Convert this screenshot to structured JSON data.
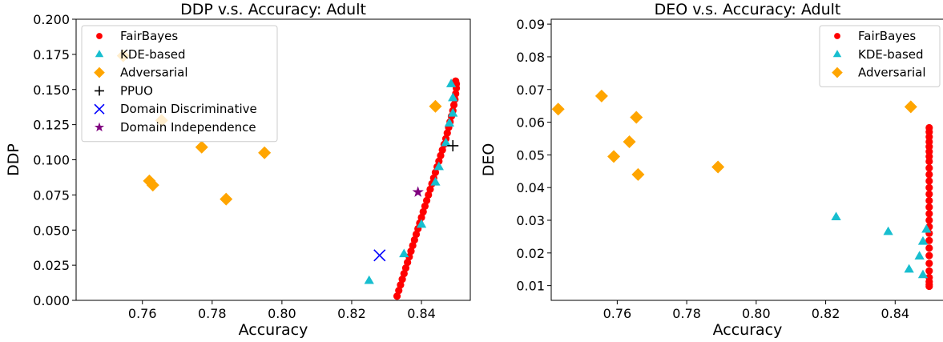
{
  "colors": {
    "fairbayes": "#ff0000",
    "kde": "#17becf",
    "adversarial": "#ffa500",
    "ppuo": "#000000",
    "domain_discriminative": "#0000ff",
    "domain_independence": "#800080"
  },
  "chart_data": [
    {
      "type": "scatter",
      "title": "DDP v.s. Accuracy: Adult",
      "xlabel": "Accuracy",
      "ylabel": "DDP",
      "xlim": [
        0.741,
        0.854
      ],
      "ylim": [
        0.0,
        0.2
      ],
      "xticks": [
        "0.76",
        "0.78",
        "0.80",
        "0.82",
        "0.84"
      ],
      "yticks": [
        "0.000",
        "0.025",
        "0.050",
        "0.075",
        "0.100",
        "0.125",
        "0.150",
        "0.175",
        "0.200"
      ],
      "grid": false,
      "legend_position": "top-left",
      "series": [
        {
          "name": "FairBayes",
          "marker": "circle",
          "color": "#ff0000",
          "points": [
            [
              0.833,
              0.003
            ],
            [
              0.8335,
              0.007
            ],
            [
              0.834,
              0.011
            ],
            [
              0.8345,
              0.015
            ],
            [
              0.835,
              0.019
            ],
            [
              0.8355,
              0.023
            ],
            [
              0.836,
              0.027
            ],
            [
              0.8365,
              0.031
            ],
            [
              0.837,
              0.035
            ],
            [
              0.8375,
              0.039
            ],
            [
              0.838,
              0.043
            ],
            [
              0.8385,
              0.047
            ],
            [
              0.839,
              0.051
            ],
            [
              0.8395,
              0.055
            ],
            [
              0.84,
              0.059
            ],
            [
              0.8405,
              0.063
            ],
            [
              0.841,
              0.067
            ],
            [
              0.8415,
              0.071
            ],
            [
              0.842,
              0.075
            ],
            [
              0.8425,
              0.079
            ],
            [
              0.843,
              0.083
            ],
            [
              0.8435,
              0.087
            ],
            [
              0.844,
              0.091
            ],
            [
              0.8445,
              0.095
            ],
            [
              0.845,
              0.099
            ],
            [
              0.8455,
              0.103
            ],
            [
              0.846,
              0.107
            ],
            [
              0.8465,
              0.111
            ],
            [
              0.847,
              0.115
            ],
            [
              0.8474,
              0.119
            ],
            [
              0.8478,
              0.123
            ],
            [
              0.8482,
              0.127
            ],
            [
              0.8486,
              0.131
            ],
            [
              0.849,
              0.135
            ],
            [
              0.8493,
              0.139
            ],
            [
              0.8496,
              0.143
            ],
            [
              0.8498,
              0.147
            ],
            [
              0.85,
              0.151
            ],
            [
              0.85,
              0.154
            ],
            [
              0.8498,
              0.156
            ]
          ]
        },
        {
          "name": "KDE-based",
          "marker": "triangle",
          "color": "#17becf",
          "points": [
            [
              0.825,
              0.014
            ],
            [
              0.835,
              0.033
            ],
            [
              0.84,
              0.054
            ],
            [
              0.844,
              0.084
            ],
            [
              0.845,
              0.095
            ],
            [
              0.847,
              0.112
            ],
            [
              0.848,
              0.126
            ],
            [
              0.849,
              0.133
            ],
            [
              0.849,
              0.144
            ],
            [
              0.8485,
              0.154
            ]
          ]
        },
        {
          "name": "Adversarial",
          "marker": "diamond",
          "color": "#ffa500",
          "points": [
            [
              0.7545,
              0.174
            ],
            [
              0.7655,
              0.128
            ],
            [
              0.777,
              0.109
            ],
            [
              0.795,
              0.105
            ],
            [
              0.762,
              0.085
            ],
            [
              0.763,
              0.082
            ],
            [
              0.784,
              0.072
            ],
            [
              0.844,
              0.138
            ]
          ]
        },
        {
          "name": "PPUO",
          "marker": "plus",
          "color": "#000000",
          "points": [
            [
              0.849,
              0.11
            ]
          ]
        },
        {
          "name": "Domain Discriminative",
          "marker": "x",
          "color": "#0000ff",
          "points": [
            [
              0.828,
              0.032
            ]
          ]
        },
        {
          "name": "Domain Independence",
          "marker": "star",
          "color": "#800080",
          "points": [
            [
              0.839,
              0.077
            ]
          ]
        }
      ]
    },
    {
      "type": "scatter",
      "title": "DEO v.s. Accuracy: Adult",
      "xlabel": "Accuracy",
      "ylabel": "DEO",
      "xlim": [
        0.741,
        0.854
      ],
      "ylim": [
        0.0055,
        0.0915
      ],
      "xticks": [
        "0.76",
        "0.78",
        "0.80",
        "0.82",
        "0.84"
      ],
      "yticks": [
        "0.01",
        "0.02",
        "0.03",
        "0.04",
        "0.05",
        "0.06",
        "0.07",
        "0.08",
        "0.09"
      ],
      "grid": false,
      "legend_position": "top-right",
      "series": [
        {
          "name": "FairBayes",
          "marker": "circle",
          "color": "#ff0000",
          "points": [
            [
              0.8498,
              0.0098
            ],
            [
              0.8498,
              0.0103
            ],
            [
              0.8498,
              0.0112
            ],
            [
              0.8498,
              0.0125
            ],
            [
              0.8498,
              0.0145
            ],
            [
              0.8498,
              0.0168
            ],
            [
              0.8498,
              0.0192
            ],
            [
              0.8498,
              0.0215
            ],
            [
              0.8498,
              0.0238
            ],
            [
              0.8498,
              0.026
            ],
            [
              0.8498,
              0.028
            ],
            [
              0.8498,
              0.03
            ],
            [
              0.8498,
              0.032
            ],
            [
              0.8498,
              0.034
            ],
            [
              0.8498,
              0.036
            ],
            [
              0.8498,
              0.038
            ],
            [
              0.8498,
              0.04
            ],
            [
              0.8498,
              0.042
            ],
            [
              0.8498,
              0.044
            ],
            [
              0.8498,
              0.046
            ],
            [
              0.8498,
              0.048
            ],
            [
              0.8498,
              0.0495
            ],
            [
              0.8498,
              0.051
            ],
            [
              0.8498,
              0.0525
            ],
            [
              0.8498,
              0.054
            ],
            [
              0.8498,
              0.0555
            ],
            [
              0.8498,
              0.057
            ],
            [
              0.8498,
              0.0583
            ]
          ]
        },
        {
          "name": "KDE-based",
          "marker": "triangle",
          "color": "#17becf",
          "points": [
            [
              0.823,
              0.031
            ],
            [
              0.838,
              0.0265
            ],
            [
              0.849,
              0.0272
            ],
            [
              0.848,
              0.0235
            ],
            [
              0.847,
              0.019
            ],
            [
              0.844,
              0.015
            ],
            [
              0.848,
              0.0133
            ]
          ]
        },
        {
          "name": "Adversarial",
          "marker": "diamond",
          "color": "#ffa500",
          "points": [
            [
              0.743,
              0.064
            ],
            [
              0.7555,
              0.068
            ],
            [
              0.7655,
              0.0615
            ],
            [
              0.7635,
              0.054
            ],
            [
              0.759,
              0.0495
            ],
            [
              0.766,
              0.044
            ],
            [
              0.789,
              0.0463
            ],
            [
              0.8445,
              0.0647
            ]
          ]
        }
      ]
    }
  ]
}
